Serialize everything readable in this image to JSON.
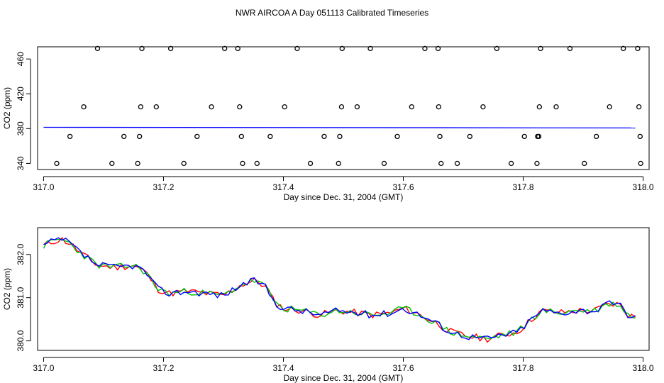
{
  "title": "NWR AIRCOA A  Day 051113  Calibrated Timeseries",
  "chart_data": [
    {
      "type": "scatter",
      "xlabel": "Day since Dec. 31, 2004 (GMT)",
      "ylabel": "CO2 (ppm)",
      "xlim": [
        316.99,
        318.01
      ],
      "ylim": [
        333,
        474
      ],
      "xticks": [
        "317.0",
        "317.2",
        "317.4",
        "317.6",
        "317.8",
        "318.0"
      ],
      "xtick_values": [
        317.0,
        317.2,
        317.4,
        317.6,
        317.8,
        318.0
      ],
      "yticks": [
        "340",
        "380",
        "420",
        "460"
      ],
      "ytick_values": [
        340,
        380,
        420,
        460
      ],
      "grid": false,
      "colors": {
        "points": "#000000",
        "line": "#0000ff"
      },
      "points": [
        [
          317.022,
          340
        ],
        [
          317.114,
          340
        ],
        [
          317.157,
          340
        ],
        [
          317.234,
          340
        ],
        [
          317.332,
          340
        ],
        [
          317.356,
          340
        ],
        [
          317.445,
          340
        ],
        [
          317.492,
          340
        ],
        [
          317.568,
          340
        ],
        [
          317.663,
          340
        ],
        [
          317.69,
          340
        ],
        [
          317.78,
          340
        ],
        [
          317.823,
          340
        ],
        [
          317.902,
          340
        ],
        [
          317.996,
          340
        ],
        [
          317.044,
          371
        ],
        [
          317.134,
          371
        ],
        [
          317.16,
          371
        ],
        [
          317.256,
          371
        ],
        [
          317.33,
          371
        ],
        [
          317.378,
          371
        ],
        [
          317.468,
          371
        ],
        [
          317.494,
          371
        ],
        [
          317.59,
          371
        ],
        [
          317.661,
          371
        ],
        [
          317.711,
          371
        ],
        [
          317.802,
          371
        ],
        [
          317.824,
          371
        ],
        [
          317.826,
          371
        ],
        [
          317.922,
          371
        ],
        [
          317.995,
          371
        ],
        [
          317.067,
          405
        ],
        [
          317.162,
          405
        ],
        [
          317.188,
          405
        ],
        [
          317.28,
          405
        ],
        [
          317.327,
          405
        ],
        [
          317.402,
          405
        ],
        [
          317.497,
          405
        ],
        [
          317.523,
          405
        ],
        [
          317.614,
          405
        ],
        [
          317.659,
          405
        ],
        [
          317.733,
          405
        ],
        [
          317.827,
          405
        ],
        [
          317.855,
          405
        ],
        [
          317.944,
          405
        ],
        [
          317.993,
          405
        ],
        [
          317.09,
          472
        ],
        [
          317.164,
          472
        ],
        [
          317.212,
          472
        ],
        [
          317.302,
          472
        ],
        [
          317.324,
          472
        ],
        [
          317.423,
          472
        ],
        [
          317.498,
          472
        ],
        [
          317.545,
          472
        ],
        [
          317.636,
          472
        ],
        [
          317.658,
          472
        ],
        [
          317.756,
          472
        ],
        [
          317.829,
          472
        ],
        [
          317.878,
          472
        ],
        [
          317.967,
          472
        ],
        [
          317.991,
          472
        ]
      ],
      "line": {
        "x": [
          317.0,
          317.987
        ],
        "y": [
          381.5,
          380.8
        ]
      }
    },
    {
      "type": "line",
      "xlabel": "Day since Dec. 31, 2004 (GMT)",
      "ylabel": "CO2 (ppm)",
      "xlim": [
        316.99,
        318.01
      ],
      "ylim": [
        379.78,
        382.62
      ],
      "xticks": [
        "317.0",
        "317.2",
        "317.4",
        "317.6",
        "317.8",
        "318.0"
      ],
      "xtick_values": [
        317.0,
        317.2,
        317.4,
        317.6,
        317.8,
        318.0
      ],
      "yticks": [
        "380.0",
        "381.0",
        "382.0"
      ],
      "ytick_values": [
        380.0,
        381.0,
        382.0
      ],
      "grid": false,
      "knots": [
        [
          317.0,
          382.2
        ],
        [
          317.015,
          382.3
        ],
        [
          317.03,
          382.35
        ],
        [
          317.045,
          382.25
        ],
        [
          317.06,
          382.05
        ],
        [
          317.09,
          381.75
        ],
        [
          317.12,
          381.7
        ],
        [
          317.15,
          381.75
        ],
        [
          317.17,
          381.6
        ],
        [
          317.19,
          381.2
        ],
        [
          317.21,
          381.1
        ],
        [
          317.24,
          381.15
        ],
        [
          317.27,
          381.1
        ],
        [
          317.3,
          381.05
        ],
        [
          317.33,
          381.3
        ],
        [
          317.355,
          381.4
        ],
        [
          317.37,
          381.25
        ],
        [
          317.385,
          380.9
        ],
        [
          317.4,
          380.75
        ],
        [
          317.43,
          380.7
        ],
        [
          317.46,
          380.6
        ],
        [
          317.49,
          380.7
        ],
        [
          317.52,
          380.65
        ],
        [
          317.55,
          380.6
        ],
        [
          317.58,
          380.65
        ],
        [
          317.6,
          380.75
        ],
        [
          317.62,
          380.65
        ],
        [
          317.65,
          380.45
        ],
        [
          317.68,
          380.2
        ],
        [
          317.71,
          380.1
        ],
        [
          317.74,
          380.05
        ],
        [
          317.77,
          380.15
        ],
        [
          317.79,
          380.2
        ],
        [
          317.81,
          380.45
        ],
        [
          317.83,
          380.7
        ],
        [
          317.86,
          380.65
        ],
        [
          317.89,
          380.7
        ],
        [
          317.92,
          380.7
        ],
        [
          317.94,
          380.85
        ],
        [
          317.96,
          380.85
        ],
        [
          317.975,
          380.6
        ],
        [
          317.987,
          380.55
        ]
      ],
      "series": [
        {
          "color": "#ff0000",
          "seed": 11
        },
        {
          "color": "#00c000",
          "seed": 23
        },
        {
          "color": "#0000ff",
          "seed": 37
        }
      ]
    }
  ]
}
